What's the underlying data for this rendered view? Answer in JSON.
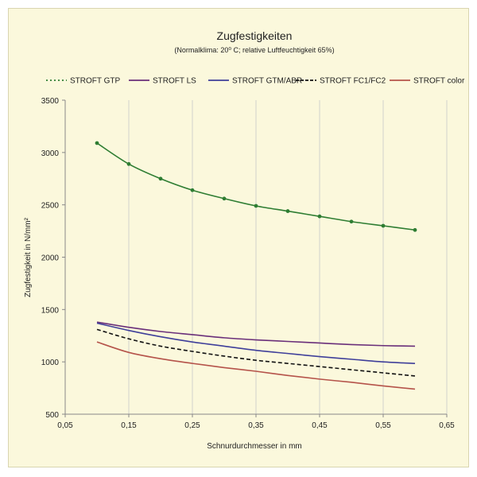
{
  "chart_data": {
    "type": "line",
    "title": "Zugfestigkeiten",
    "subtitle": "(Normalklima: 20⁰ C;  relative Luftfeuchtigkeit 65%)",
    "xlabel": "Schnurdurchmesser in mm",
    "ylabel": "Zugfestigkeit in N/mm²",
    "xlim": [
      0.05,
      0.65
    ],
    "ylim": [
      500,
      3500
    ],
    "xticks": [
      "0,05",
      "0,15",
      "0,25",
      "0,35",
      "0,45",
      "0,55",
      "0,65"
    ],
    "yticks": [
      "500",
      "1000",
      "1500",
      "2000",
      "2500",
      "3000",
      "3500"
    ],
    "grid": "vertical",
    "legend_position": "top",
    "series": [
      {
        "name": "STROFT GTP",
        "color": "#2e7d32",
        "style": "solid-markers",
        "x": [
          0.1,
          0.15,
          0.2,
          0.25,
          0.3,
          0.35,
          0.4,
          0.45,
          0.5,
          0.55,
          0.6
        ],
        "y": [
          3090,
          2890,
          2750,
          2640,
          2560,
          2490,
          2440,
          2390,
          2340,
          2300,
          2260
        ]
      },
      {
        "name": "STROFT LS",
        "color": "#6a2f7a",
        "style": "solid",
        "x": [
          0.1,
          0.15,
          0.2,
          0.25,
          0.3,
          0.35,
          0.4,
          0.45,
          0.5,
          0.55,
          0.6
        ],
        "y": [
          1380,
          1330,
          1290,
          1260,
          1230,
          1210,
          1195,
          1180,
          1165,
          1155,
          1150
        ]
      },
      {
        "name": "STROFT GTM/ABR",
        "color": "#3f3f9a",
        "style": "solid",
        "x": [
          0.1,
          0.15,
          0.2,
          0.25,
          0.3,
          0.35,
          0.4,
          0.45,
          0.5,
          0.55,
          0.6
        ],
        "y": [
          1370,
          1300,
          1240,
          1190,
          1150,
          1110,
          1080,
          1050,
          1025,
          1000,
          985
        ]
      },
      {
        "name": "STROFT FC1/FC2",
        "color": "#111111",
        "style": "dashed",
        "x": [
          0.1,
          0.15,
          0.2,
          0.25,
          0.3,
          0.35,
          0.4,
          0.45,
          0.5,
          0.55,
          0.6
        ],
        "y": [
          1310,
          1220,
          1150,
          1100,
          1055,
          1015,
          985,
          955,
          925,
          895,
          865
        ]
      },
      {
        "name": "STROFT color",
        "color": "#b5534a",
        "style": "solid",
        "x": [
          0.1,
          0.15,
          0.2,
          0.25,
          0.3,
          0.35,
          0.4,
          0.45,
          0.5,
          0.55,
          0.6
        ],
        "y": [
          1190,
          1090,
          1030,
          985,
          945,
          910,
          870,
          835,
          805,
          770,
          740
        ]
      }
    ]
  }
}
